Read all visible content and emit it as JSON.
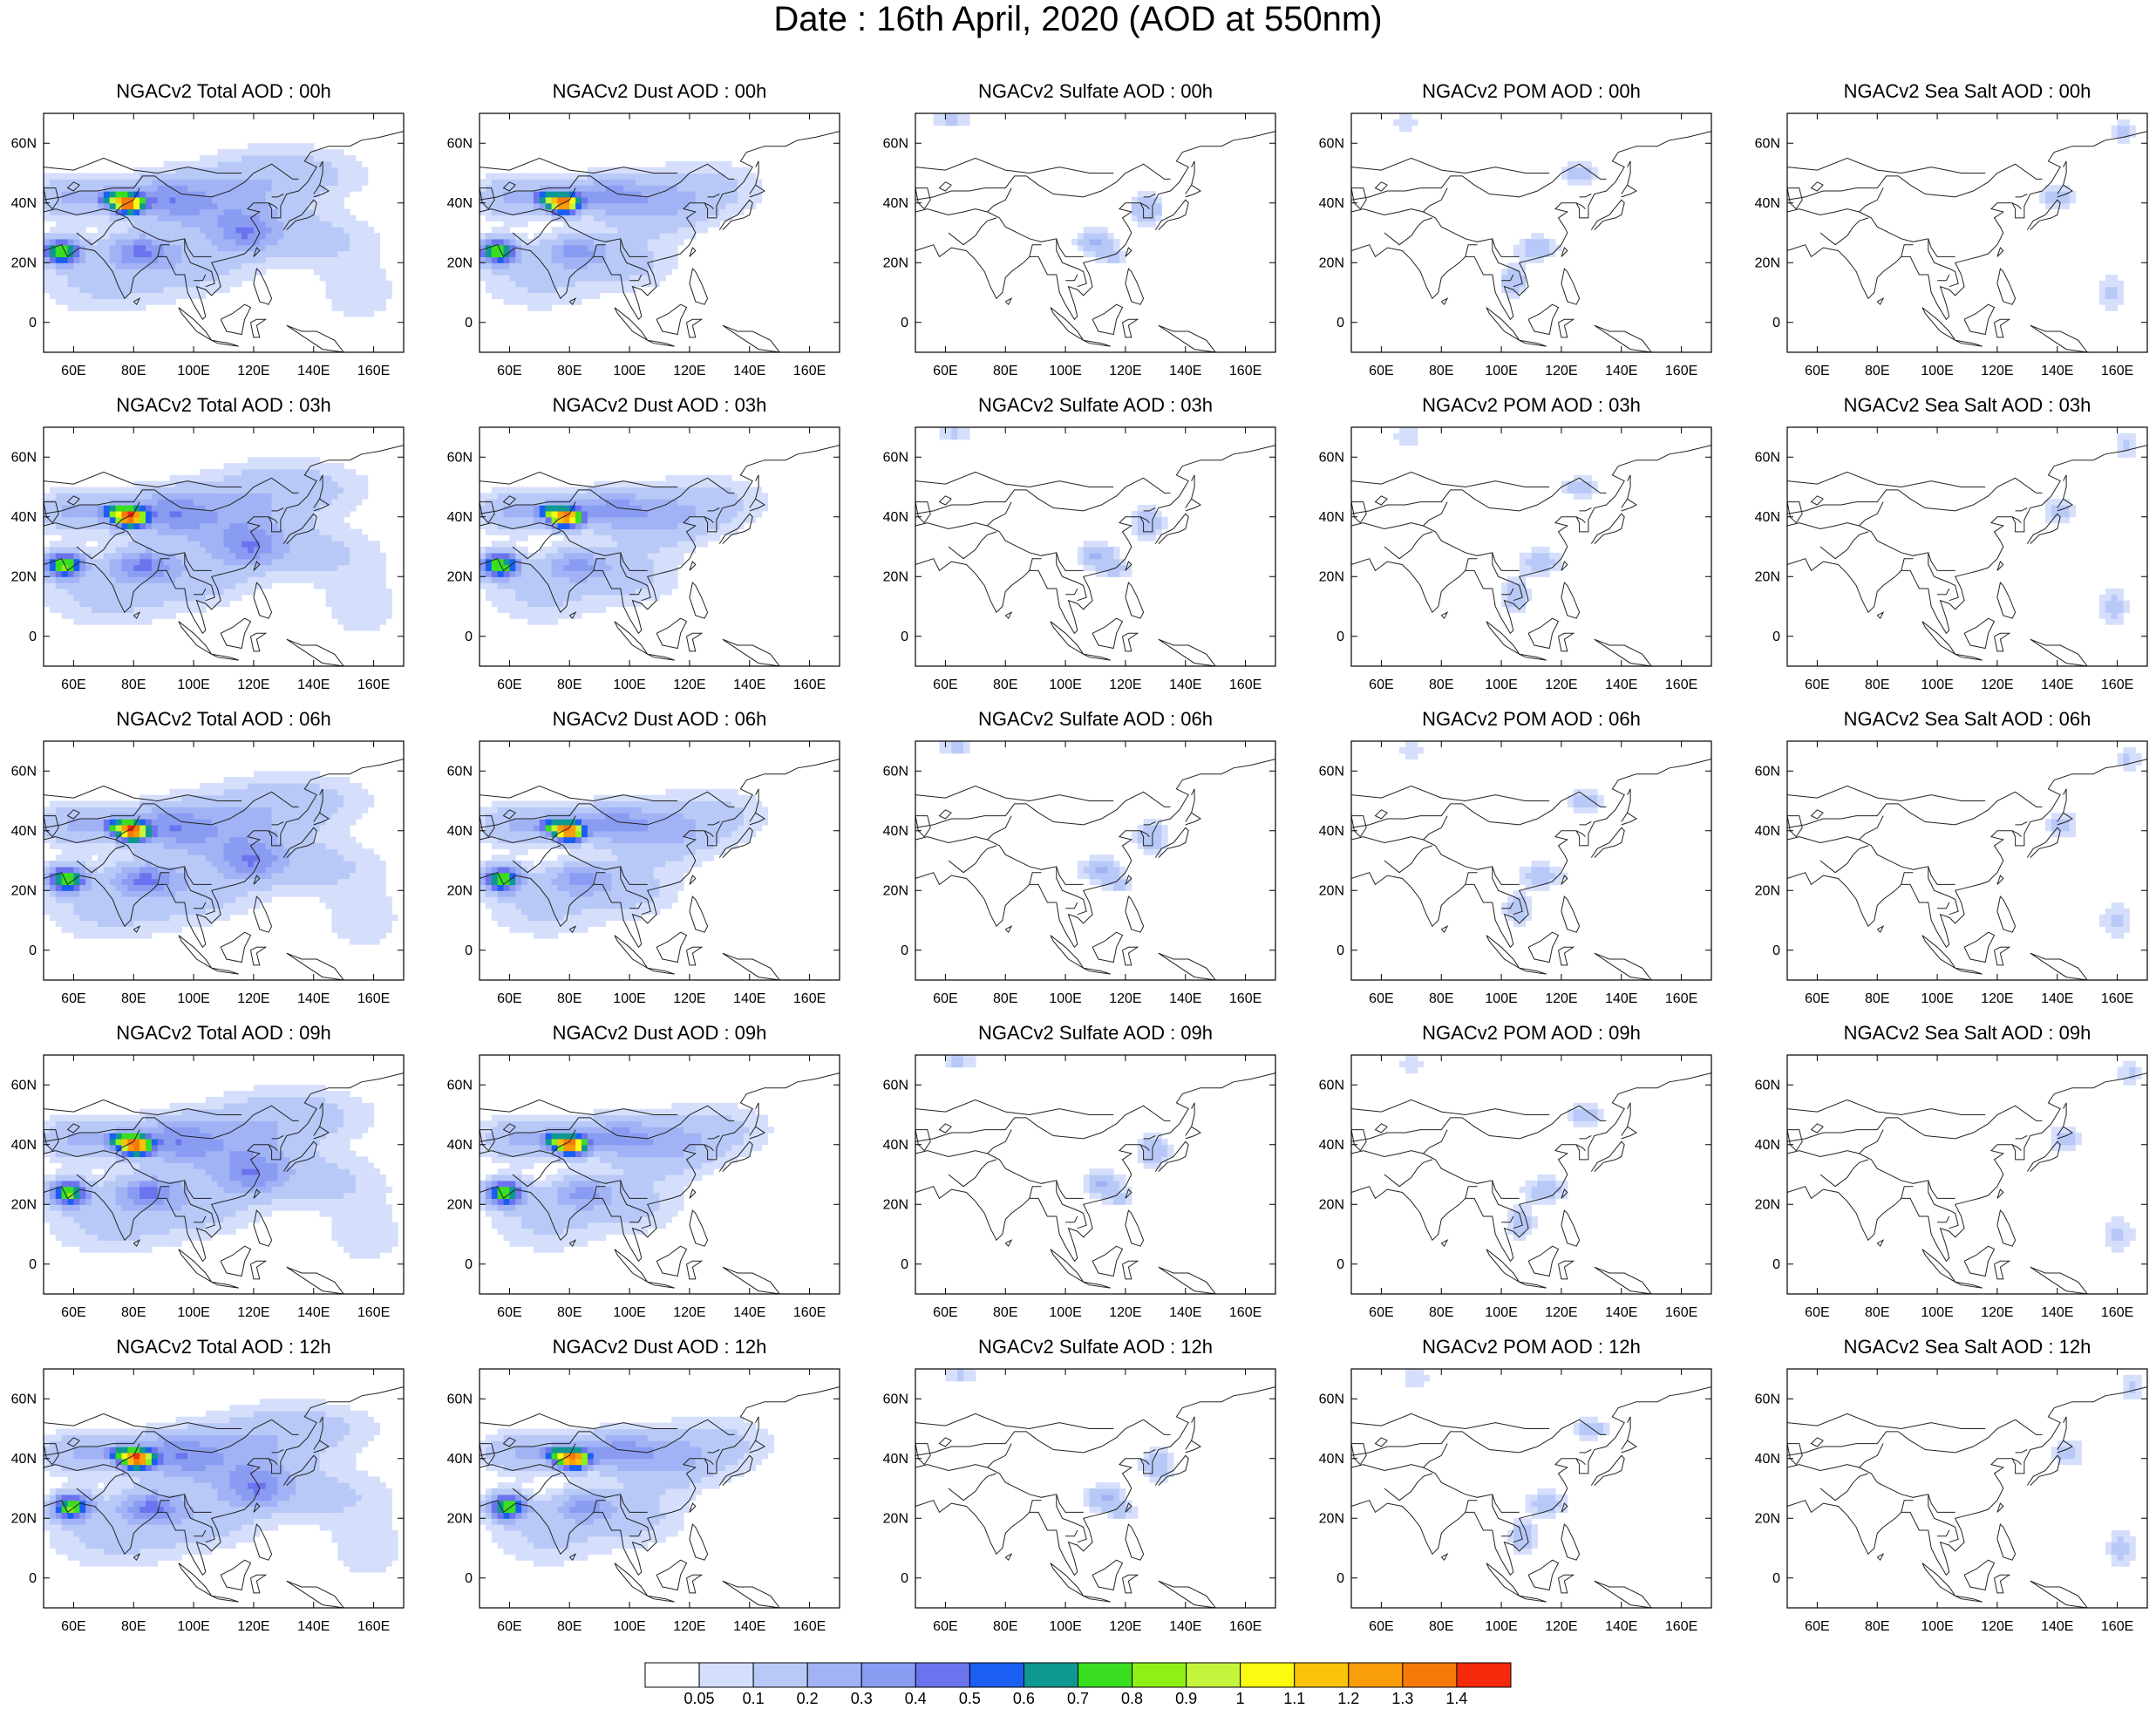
{
  "title": "Date : 16th April, 2020 (AOD at 550nm)",
  "rows": [
    [
      "NGACv2 Total AOD : 00h",
      "NGACv2 Dust AOD : 00h",
      "NGACv2 Sulfate AOD : 00h",
      "NGACv2 POM AOD : 00h",
      "NGACv2 Sea Salt AOD : 00h"
    ],
    [
      "NGACv2 Total AOD : 03h",
      "NGACv2 Dust AOD : 03h",
      "NGACv2 Sulfate AOD : 03h",
      "NGACv2 POM AOD : 03h",
      "NGACv2 Sea Salt AOD : 03h"
    ],
    [
      "NGACv2 Total AOD : 06h",
      "NGACv2 Dust AOD : 06h",
      "NGACv2 Sulfate AOD : 06h",
      "NGACv2 POM AOD : 06h",
      "NGACv2 Sea Salt AOD : 06h"
    ],
    [
      "NGACv2 Total AOD : 09h",
      "NGACv2 Dust AOD : 09h",
      "NGACv2 Sulfate AOD : 09h",
      "NGACv2 POM AOD : 09h",
      "NGACv2 Sea Salt  AOD : 09h"
    ],
    [
      "NGACv2 Total AOD  : 12h",
      "NGACv2 Dust AOD : 12h",
      "NGACv2 Sulfate AOD : 12h",
      "NGACv2 POM  AOD : 12h",
      "NGACv2 Sea Salt  AOD : 12h"
    ]
  ],
  "lon_ticks": [
    "60E",
    "80E",
    "100E",
    "120E",
    "140E",
    "160E"
  ],
  "lat_ticks": [
    "60N",
    "40N",
    "20N",
    "0"
  ],
  "lon_tick_values": [
    60,
    80,
    100,
    120,
    140,
    160
  ],
  "lat_tick_values": [
    60,
    40,
    20,
    0
  ],
  "lon_range": [
    50,
    170
  ],
  "lat_range": [
    -10,
    70
  ],
  "colorbar": {
    "labels": [
      "0.05",
      "0.1",
      "0.2",
      "0.3",
      "0.4",
      "0.5",
      "0.6",
      "0.7",
      "0.8",
      "0.9",
      "1",
      "1.1",
      "1.2",
      "1.3",
      "1.4"
    ],
    "colors": [
      "#ffffff",
      "#d5dffc",
      "#b8c9f8",
      "#a1b3f5",
      "#8a9cf2",
      "#6b74ee",
      "#1a5ff2",
      "#0f9891",
      "#3ade20",
      "#8ff018",
      "#c4f53c",
      "#fbfb12",
      "#fbc20a",
      "#f99d08",
      "#f77a06",
      "#f52a0c"
    ]
  }
}
